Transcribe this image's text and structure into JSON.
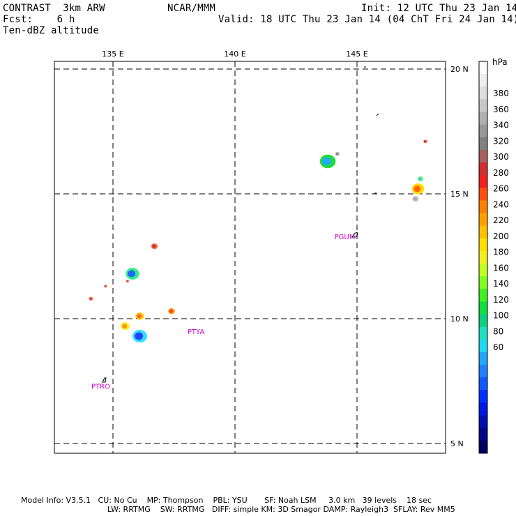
{
  "header": {
    "model": "CONTRAST  3km ARW",
    "org": "NCAR/MMM",
    "init": "Init: 12 UTC Thu 23 Jan 14",
    "fcst": "Fcst:    6 h",
    "valid": "Valid: 18 UTC Thu 23 Jan 14 (04 ChT Fri 24 Jan 14)",
    "field": "Ten-dBZ altitude"
  },
  "map": {
    "lon_labels": [
      "135 E",
      "140 E",
      "145 E"
    ],
    "lat_labels": [
      "20 N",
      "15 N",
      "10 N",
      "5 N"
    ],
    "lon_values": [
      135,
      140,
      145
    ],
    "lat_values": [
      20,
      15,
      10,
      5
    ],
    "lon_range": [
      132.6,
      148.7
    ],
    "lat_range": [
      4.5,
      20.5
    ],
    "stations": [
      {
        "id": "PGUM",
        "lon": 144.5,
        "lat": 13.3
      },
      {
        "id": "PTYA",
        "lon": 138.4,
        "lat": 9.5
      },
      {
        "id": "PTRO",
        "lon": 134.5,
        "lat": 7.3
      }
    ],
    "echoes": [
      {
        "lon": 143.8,
        "lat": 16.3,
        "r": 0.28,
        "core": "#22aaff",
        "ring": "#22dd33"
      },
      {
        "lon": 147.5,
        "lat": 15.2,
        "r": 0.22,
        "core": "#ff6600",
        "ring": "#ffdd00"
      },
      {
        "lon": 147.6,
        "lat": 15.6,
        "r": 0.1,
        "core": "#33ccff",
        "ring": "#66ff66"
      },
      {
        "lon": 147.4,
        "lat": 14.8,
        "r": 0.12,
        "core": "#aaaaaa",
        "ring": "#cccccc"
      },
      {
        "lon": 135.8,
        "lat": 11.8,
        "r": 0.24,
        "core": "#2266ff",
        "ring": "#33ee88"
      },
      {
        "lon": 136.1,
        "lat": 9.3,
        "r": 0.26,
        "core": "#2244ff",
        "ring": "#33ddff"
      },
      {
        "lon": 135.5,
        "lat": 9.7,
        "r": 0.16,
        "core": "#ff9900",
        "ring": "#ffee33"
      },
      {
        "lon": 136.1,
        "lat": 10.1,
        "r": 0.15,
        "core": "#ff6633",
        "ring": "#ffcc00"
      },
      {
        "lon": 137.4,
        "lat": 10.3,
        "r": 0.12,
        "core": "#ff4400",
        "ring": "#ff9922"
      },
      {
        "lon": 136.7,
        "lat": 12.9,
        "r": 0.12,
        "core": "#cc3333",
        "ring": "#ff7744"
      },
      {
        "lon": 134.1,
        "lat": 10.8,
        "r": 0.08,
        "core": "#cc4444",
        "ring": "#ff8866"
      },
      {
        "lon": 134.7,
        "lat": 11.3,
        "r": 0.06,
        "core": "#cc4444",
        "ring": "#ff8866"
      },
      {
        "lon": 135.6,
        "lat": 11.5,
        "r": 0.06,
        "core": "#cc4444",
        "ring": "#ff8866"
      },
      {
        "lon": 147.8,
        "lat": 17.1,
        "r": 0.07,
        "core": "#cc3333",
        "ring": "#ff6655"
      },
      {
        "lon": 144.2,
        "lat": 16.6,
        "r": 0.08,
        "core": "#888888",
        "ring": "#bbbbbb"
      }
    ]
  },
  "colorbar": {
    "unit": "hPa",
    "tick_labels": [
      "380",
      "360",
      "340",
      "320",
      "300",
      "280",
      "260",
      "240",
      "220",
      "200",
      "180",
      "160",
      "140",
      "120",
      "100",
      "80",
      "60"
    ],
    "colors": [
      "#ffffff",
      "#eeeeee",
      "#dddddd",
      "#c8c8c8",
      "#b0b0b0",
      "#989898",
      "#808080",
      "#a86060",
      "#d03030",
      "#f02020",
      "#ff5010",
      "#ff8000",
      "#ffa000",
      "#ffc000",
      "#ffe000",
      "#f0f020",
      "#c0ff20",
      "#80ff20",
      "#40f020",
      "#10e040",
      "#10d080",
      "#20e0c0",
      "#20d8f0",
      "#20a8ff",
      "#2080ff",
      "#1058ff",
      "#0030ff",
      "#0018e0",
      "#0010b0",
      "#000888",
      "#000060"
    ]
  },
  "footer": {
    "line1": "Model Info: V3.5.1   CU: No Cu    MP: Thompson    PBL: YSU       SF: Noah LSM     3.0 km   39 levels    18 sec",
    "line2": "LW: RRTMG    SW: RRTMG   DIFF: simple KM: 3D Smagor DAMP: Rayleigh3  SFLAY: Rev MM5"
  }
}
